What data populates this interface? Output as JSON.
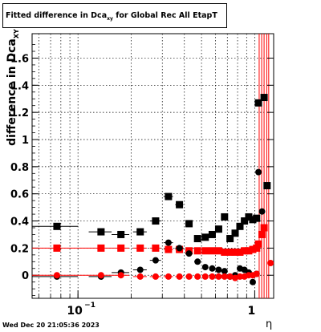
{
  "title": {
    "prefix": "Fitted difference in Dca",
    "subscript": "xy",
    "suffix": " for Global Rec All EtapT"
  },
  "ylabel": {
    "main": "difference in Dca",
    "subscript": "XY"
  },
  "xlabel": "η",
  "timestamp": "Wed Dec 20 21:05:36 2023",
  "colors": {
    "black": "#000000",
    "red": "#ff0000"
  },
  "chart_data": {
    "type": "scatter",
    "xscale": "log",
    "xlim": [
      0.055,
      1.28
    ],
    "ylim": [
      -0.17,
      1.78
    ],
    "grid": true,
    "x_ticks": [
      {
        "value": 0.1,
        "label": "10",
        "exp": "−1"
      },
      {
        "value": 1,
        "label": "1"
      }
    ],
    "y_ticks": [
      {
        "value": 0,
        "label": "0"
      },
      {
        "value": 0.2,
        "label": "0.2"
      },
      {
        "value": 0.4,
        "label": "0.4"
      },
      {
        "value": 0.6,
        "label": "0.6"
      },
      {
        "value": 0.8,
        "label": "0.8"
      },
      {
        "value": 1.0,
        "label": "1"
      },
      {
        "value": 1.2,
        "label": "1.2"
      },
      {
        "value": 1.4,
        "label": "1.4"
      },
      {
        "value": 1.6,
        "label": "1.6"
      }
    ],
    "vertical_lines": [
      1.06,
      1.095,
      1.13,
      1.17,
      1.2
    ],
    "series": [
      {
        "marker": "square",
        "color": "#000000",
        "points": [
          {
            "x": 0.076,
            "y": 0.36,
            "xerr": [
              0.055,
              0.1
            ]
          },
          {
            "x": 0.135,
            "y": 0.32,
            "xerr": [
              0.115,
              0.155
            ]
          },
          {
            "x": 0.175,
            "y": 0.3,
            "xerr": [
              0.155,
              0.195
            ]
          },
          {
            "x": 0.225,
            "y": 0.32,
            "xerr": [
              0.205,
              0.245
            ]
          },
          {
            "x": 0.275,
            "y": 0.4,
            "xerr": [
              0.255,
              0.295
            ]
          },
          {
            "x": 0.325,
            "y": 0.58,
            "xerr": [
              0.305,
              0.345
            ]
          },
          {
            "x": 0.375,
            "y": 0.52,
            "xerr": [
              0.355,
              0.395
            ]
          },
          {
            "x": 0.425,
            "y": 0.38,
            "xerr": [
              0.405,
              0.445
            ]
          },
          {
            "x": 0.475,
            "y": 0.27,
            "xerr": [
              0.455,
              0.495
            ]
          },
          {
            "x": 0.525,
            "y": 0.28,
            "xerr": [
              0.505,
              0.545
            ]
          },
          {
            "x": 0.575,
            "y": 0.3,
            "xerr": [
              0.555,
              0.595
            ]
          },
          {
            "x": 0.625,
            "y": 0.34,
            "xerr": [
              0.605,
              0.645
            ]
          },
          {
            "x": 0.675,
            "y": 0.43,
            "xerr": [
              0.655,
              0.695
            ]
          },
          {
            "x": 0.725,
            "y": 0.27,
            "xerr": [
              0.705,
              0.745
            ]
          },
          {
            "x": 0.775,
            "y": 0.31,
            "xerr": [
              0.755,
              0.795
            ]
          },
          {
            "x": 0.825,
            "y": 0.36,
            "xerr": [
              0.805,
              0.845
            ]
          },
          {
            "x": 0.875,
            "y": 0.4,
            "xerr": [
              0.855,
              0.895
            ]
          },
          {
            "x": 0.925,
            "y": 0.43,
            "xerr": [
              0.905,
              0.945
            ]
          },
          {
            "x": 0.975,
            "y": 0.41,
            "xerr": [
              0.955,
              0.995
            ]
          },
          {
            "x": 1.025,
            "y": 0.42,
            "xerr": [
              1.005,
              1.045
            ]
          },
          {
            "x": 1.05,
            "y": 1.27,
            "xerr": [
              1.035,
              1.065
            ]
          },
          {
            "x": 1.13,
            "y": 1.31,
            "xerr": [
              1.115,
              1.145
            ]
          },
          {
            "x": 1.175,
            "y": 0.66,
            "xerr": [
              1.16,
              1.19
            ]
          }
        ]
      },
      {
        "marker": "square",
        "color": "#ff0000",
        "points": [
          {
            "x": 0.076,
            "y": 0.2,
            "xerr": [
              0.055,
              0.1
            ]
          },
          {
            "x": 0.135,
            "y": 0.2,
            "xerr": [
              0.1,
              0.155
            ]
          },
          {
            "x": 0.175,
            "y": 0.2,
            "xerr": [
              0.155,
              0.195
            ]
          },
          {
            "x": 0.225,
            "y": 0.2,
            "xerr": [
              0.205,
              0.245
            ]
          },
          {
            "x": 0.275,
            "y": 0.2,
            "xerr": [
              0.255,
              0.295
            ]
          },
          {
            "x": 0.325,
            "y": 0.19,
            "xerr": [
              0.305,
              0.345
            ]
          },
          {
            "x": 0.375,
            "y": 0.19,
            "xerr": [
              0.355,
              0.395
            ]
          },
          {
            "x": 0.425,
            "y": 0.18,
            "xerr": [
              0.405,
              0.445
            ]
          },
          {
            "x": 0.475,
            "y": 0.18,
            "xerr": [
              0.455,
              0.495
            ]
          },
          {
            "x": 0.525,
            "y": 0.18,
            "xerr": [
              0.505,
              0.545
            ]
          },
          {
            "x": 0.575,
            "y": 0.18,
            "xerr": [
              0.555,
              0.595
            ]
          },
          {
            "x": 0.625,
            "y": 0.18,
            "xerr": [
              0.605,
              0.645
            ]
          },
          {
            "x": 0.675,
            "y": 0.17,
            "xerr": [
              0.655,
              0.695
            ]
          },
          {
            "x": 0.725,
            "y": 0.17,
            "xerr": [
              0.705,
              0.745
            ]
          },
          {
            "x": 0.775,
            "y": 0.17,
            "xerr": [
              0.755,
              0.795
            ]
          },
          {
            "x": 0.825,
            "y": 0.17,
            "xerr": [
              0.805,
              0.845
            ]
          },
          {
            "x": 0.875,
            "y": 0.18,
            "xerr": [
              0.855,
              0.895
            ]
          },
          {
            "x": 0.925,
            "y": 0.18,
            "xerr": [
              0.905,
              0.945
            ]
          },
          {
            "x": 0.975,
            "y": 0.19,
            "xerr": [
              0.955,
              0.995
            ]
          },
          {
            "x": 1.025,
            "y": 0.2,
            "xerr": [
              1.005,
              1.045
            ]
          },
          {
            "x": 1.05,
            "y": 0.23,
            "xerr": [
              1.035,
              1.065
            ]
          },
          {
            "x": 1.1,
            "y": 0.3,
            "xerr": [
              1.085,
              1.115
            ]
          },
          {
            "x": 1.13,
            "y": 0.35,
            "xerr": [
              1.115,
              1.145
            ]
          }
        ]
      },
      {
        "marker": "circle",
        "color": "#000000",
        "points": [
          {
            "x": 0.076,
            "y": -0.01,
            "xerr": [
              0.055,
              0.1
            ]
          },
          {
            "x": 0.135,
            "y": -0.01,
            "xerr": [
              0.115,
              0.155
            ]
          },
          {
            "x": 0.175,
            "y": 0.02,
            "xerr": [
              0.155,
              0.195
            ]
          },
          {
            "x": 0.225,
            "y": 0.04,
            "xerr": [
              0.205,
              0.245
            ]
          },
          {
            "x": 0.275,
            "y": 0.11,
            "xerr": [
              0.255,
              0.295
            ]
          },
          {
            "x": 0.325,
            "y": 0.24,
            "xerr": [
              0.305,
              0.345
            ]
          },
          {
            "x": 0.375,
            "y": 0.2,
            "xerr": [
              0.355,
              0.395
            ]
          },
          {
            "x": 0.425,
            "y": 0.16,
            "xerr": [
              0.405,
              0.445
            ]
          },
          {
            "x": 0.475,
            "y": 0.1,
            "xerr": [
              0.455,
              0.495
            ]
          },
          {
            "x": 0.525,
            "y": 0.06,
            "xerr": [
              0.505,
              0.545
            ]
          },
          {
            "x": 0.575,
            "y": 0.05,
            "xerr": [
              0.555,
              0.595
            ]
          },
          {
            "x": 0.625,
            "y": 0.04,
            "xerr": [
              0.605,
              0.645
            ]
          },
          {
            "x": 0.675,
            "y": 0.03,
            "xerr": [
              0.655,
              0.695
            ]
          },
          {
            "x": 0.725,
            "y": -0.01,
            "xerr": [
              0.705,
              0.745
            ]
          },
          {
            "x": 0.775,
            "y": 0.0,
            "xerr": [
              0.755,
              0.795
            ]
          },
          {
            "x": 0.825,
            "y": 0.05,
            "xerr": [
              0.805,
              0.845
            ]
          },
          {
            "x": 0.875,
            "y": 0.04,
            "xerr": [
              0.855,
              0.895
            ]
          },
          {
            "x": 0.925,
            "y": 0.02,
            "xerr": [
              0.905,
              0.945
            ]
          },
          {
            "x": 0.975,
            "y": -0.05,
            "xerr": [
              0.955,
              0.995
            ]
          },
          {
            "x": 1.025,
            "y": 0.01,
            "xerr": [
              1.005,
              1.045
            ]
          },
          {
            "x": 1.05,
            "y": 0.76,
            "xerr": [
              1.035,
              1.065
            ]
          },
          {
            "x": 1.1,
            "y": 0.47,
            "xerr": [
              1.085,
              1.115
            ]
          }
        ]
      },
      {
        "marker": "circle",
        "color": "#ff0000",
        "points": [
          {
            "x": 0.076,
            "y": 0.0,
            "xerr": [
              0.055,
              0.1
            ]
          },
          {
            "x": 0.135,
            "y": 0.0,
            "xerr": [
              0.1,
              0.155
            ]
          },
          {
            "x": 0.175,
            "y": 0.0,
            "xerr": [
              0.155,
              0.195
            ]
          },
          {
            "x": 0.225,
            "y": -0.01,
            "xerr": [
              0.205,
              0.245
            ]
          },
          {
            "x": 0.275,
            "y": -0.01,
            "xerr": [
              0.255,
              0.295
            ]
          },
          {
            "x": 0.325,
            "y": -0.01,
            "xerr": [
              0.305,
              0.345
            ]
          },
          {
            "x": 0.375,
            "y": -0.01,
            "xerr": [
              0.355,
              0.395
            ]
          },
          {
            "x": 0.425,
            "y": -0.01,
            "xerr": [
              0.405,
              0.445
            ]
          },
          {
            "x": 0.475,
            "y": -0.01,
            "xerr": [
              0.455,
              0.495
            ]
          },
          {
            "x": 0.525,
            "y": -0.01,
            "xerr": [
              0.505,
              0.545
            ]
          },
          {
            "x": 0.575,
            "y": -0.01,
            "xerr": [
              0.555,
              0.595
            ]
          },
          {
            "x": 0.625,
            "y": -0.01,
            "xerr": [
              0.605,
              0.645
            ]
          },
          {
            "x": 0.675,
            "y": -0.01,
            "xerr": [
              0.655,
              0.695
            ]
          },
          {
            "x": 0.725,
            "y": -0.01,
            "xerr": [
              0.705,
              0.745
            ]
          },
          {
            "x": 0.775,
            "y": -0.02,
            "xerr": [
              0.755,
              0.795
            ]
          },
          {
            "x": 0.825,
            "y": -0.01,
            "xerr": [
              0.805,
              0.845
            ]
          },
          {
            "x": 0.875,
            "y": -0.01,
            "xerr": [
              0.855,
              0.895
            ]
          },
          {
            "x": 0.925,
            "y": 0.0,
            "xerr": [
              0.905,
              0.945
            ]
          },
          {
            "x": 0.975,
            "y": 0.0,
            "xerr": [
              0.955,
              0.995
            ]
          },
          {
            "x": 1.025,
            "y": 0.01,
            "xerr": [
              1.005,
              1.045
            ]
          },
          {
            "x": 1.23,
            "y": 0.09,
            "xerr": [
              1.215,
              1.245
            ]
          }
        ]
      }
    ]
  }
}
